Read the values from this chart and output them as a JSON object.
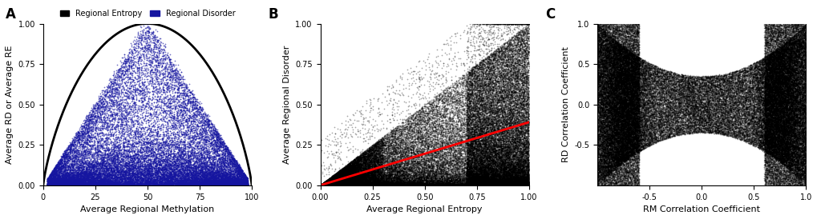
{
  "fig_width": 10.2,
  "fig_height": 2.74,
  "dpi": 100,
  "panel_A": {
    "label": "A",
    "n_scatter": 30000,
    "scatter_color": "#1515A0",
    "scatter_alpha": 0.6,
    "scatter_size": 1.5,
    "line_color": "black",
    "line_width": 2.0,
    "xlabel": "Average Regional Methylation",
    "ylabel": "Average RD or Average RE",
    "xlim": [
      0,
      100
    ],
    "ylim": [
      0,
      1.0
    ],
    "xticks": [
      0,
      25,
      50,
      75,
      100
    ],
    "yticks": [
      0.0,
      0.25,
      0.5,
      0.75,
      1.0
    ],
    "legend_entropy_label": "Regional Entropy",
    "legend_disorder_label": "Regional Disorder",
    "legend_entropy_color": "black",
    "legend_disorder_color": "#1515A0"
  },
  "panel_B": {
    "label": "B",
    "n_scatter": 40000,
    "scatter_color": "black",
    "scatter_alpha": 0.35,
    "scatter_size": 1.5,
    "line_color": "red",
    "line_width": 2.0,
    "line_slope": 0.39,
    "xlabel": "Average Regional Entropy",
    "ylabel": "Average Regional Disorder",
    "xlim": [
      0.0,
      1.0
    ],
    "ylim": [
      0.0,
      1.0
    ],
    "xticks": [
      0.0,
      0.25,
      0.5,
      0.75,
      1.0
    ],
    "yticks": [
      0.0,
      0.25,
      0.5,
      0.75,
      1.0
    ]
  },
  "panel_C": {
    "label": "C",
    "n_scatter": 40000,
    "scatter_color": "black",
    "scatter_alpha": 0.3,
    "scatter_size": 1.5,
    "xlabel": "RM Correlation Coefficient",
    "ylabel": "RD Correlation Coefficient",
    "xlim": [
      -1.0,
      1.0
    ],
    "ylim": [
      -1.0,
      1.0
    ],
    "xticks": [
      -0.5,
      0.0,
      0.5,
      1.0
    ],
    "yticks": [
      -0.5,
      0.0,
      0.5,
      1.0
    ]
  }
}
